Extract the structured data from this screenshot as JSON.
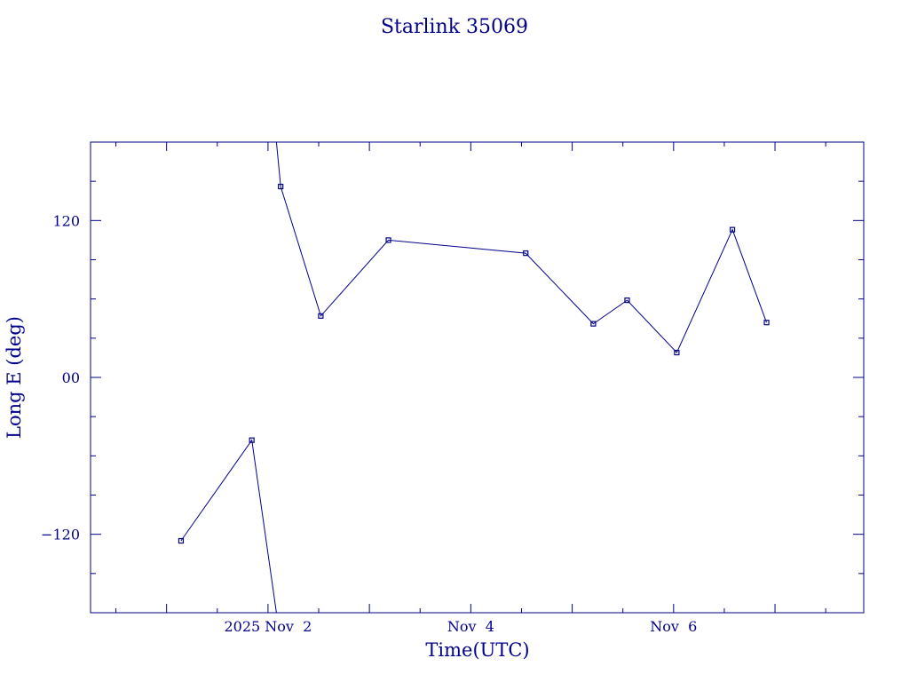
{
  "chart_data": {
    "type": "line",
    "title": "Starlink 35069",
    "xlabel": "Time(UTC)",
    "ylabel": "Long E (deg)",
    "color": "#00008b",
    "x_unit": "days",
    "xlim": [
      "2025-10-31T06:00",
      "2025-11-07T21:00"
    ],
    "ylim": [
      -180,
      180
    ],
    "grid": false,
    "legend": "none",
    "x_tick_labels": [
      {
        "value": "2025-11-02T00:00",
        "label": "2025 Nov  2"
      },
      {
        "value": "2025-11-04T00:00",
        "label": "Nov  4"
      },
      {
        "value": "2025-11-06T00:00",
        "label": "Nov  6"
      }
    ],
    "y_tick_labels": [
      {
        "value": 120,
        "label": "120"
      },
      {
        "value": 0,
        "label": "00"
      },
      {
        "value": -120,
        "label": "−120"
      }
    ],
    "series": [
      {
        "segments": [
          [
            {
              "x": "2025-11-01T03:25",
              "y": -125
            },
            {
              "x": "2025-11-01T20:10",
              "y": -48
            },
            {
              "x": "2025-11-02T02:00",
              "y": -180
            }
          ],
          [
            {
              "x": "2025-11-02T02:00",
              "y": 180
            },
            {
              "x": "2025-11-02T03:00",
              "y": 146
            },
            {
              "x": "2025-11-02T12:30",
              "y": 47
            },
            {
              "x": "2025-11-03T04:30",
              "y": 105
            },
            {
              "x": "2025-11-04T13:00",
              "y": 95
            },
            {
              "x": "2025-11-05T05:00",
              "y": 41
            },
            {
              "x": "2025-11-05T13:00",
              "y": 59
            },
            {
              "x": "2025-11-06T00:45",
              "y": 19
            },
            {
              "x": "2025-11-06T13:55",
              "y": 113
            },
            {
              "x": "2025-11-06T22:00",
              "y": 42
            }
          ]
        ]
      }
    ]
  }
}
